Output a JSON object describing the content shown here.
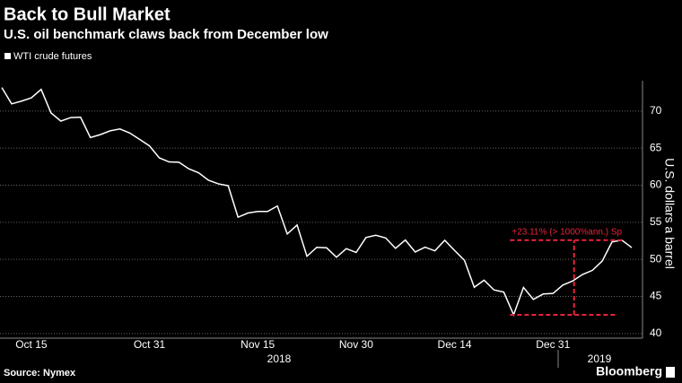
{
  "chart_data": {
    "type": "line",
    "title": "Back to Bull Market",
    "subtitle": "U.S. oil benchmark claws back from December low",
    "y_label": "U.S. dollars a barrel",
    "source": "Source: Nymex",
    "brand": "Bloomberg",
    "annotation": "+23.11% (> 1000%ann.) Sp",
    "years": [
      "2018",
      "2019"
    ],
    "categories": [
      null,
      null,
      null,
      "Oct 15",
      null,
      null,
      null,
      null,
      null,
      null,
      null,
      null,
      null,
      null,
      null,
      "Oct 31",
      null,
      null,
      null,
      null,
      null,
      null,
      null,
      null,
      null,
      null,
      "Nov 15",
      null,
      null,
      null,
      null,
      null,
      null,
      null,
      null,
      null,
      "Nov 30",
      null,
      null,
      null,
      null,
      null,
      null,
      null,
      null,
      null,
      "Dec 14",
      null,
      null,
      null,
      null,
      null,
      null,
      null,
      null,
      null,
      "Dec 31",
      null,
      null,
      null,
      null,
      null,
      null,
      null,
      null
    ],
    "series": [
      {
        "name": "WTI crude futures",
        "color": "#ffffff",
        "values": [
          73.17,
          70.97,
          71.34,
          71.78,
          72.92,
          69.75,
          68.65,
          69.12,
          69.17,
          66.43,
          66.82,
          67.33,
          67.59,
          67.04,
          66.18,
          65.31,
          63.69,
          63.14,
          63.1,
          62.21,
          61.67,
          60.67,
          60.19,
          59.93,
          55.69,
          56.25,
          56.46,
          56.46,
          57.2,
          53.43,
          54.63,
          50.42,
          51.63,
          51.56,
          50.29,
          51.45,
          50.93,
          52.95,
          53.25,
          52.89,
          51.49,
          52.61,
          51.0,
          51.65,
          51.15,
          52.58,
          51.2,
          49.88,
          46.24,
          47.2,
          45.88,
          45.59,
          42.53,
          46.22,
          44.61,
          45.33,
          45.41,
          46.54,
          47.09,
          47.96,
          48.52,
          49.78,
          52.36,
          52.59,
          51.59
        ]
      }
    ],
    "ylim": [
      39.5,
      75.3
    ],
    "yticks": [
      40,
      45,
      50,
      55,
      60,
      65,
      70
    ],
    "grid": true,
    "annotation_color": "#e8243c"
  }
}
